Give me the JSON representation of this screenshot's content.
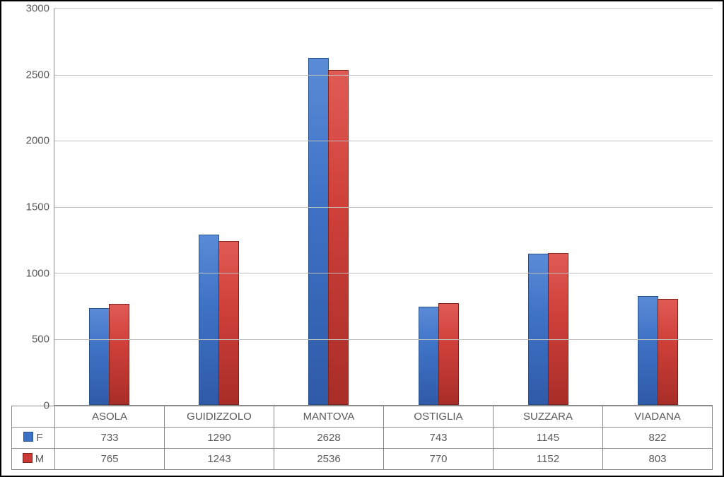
{
  "chart": {
    "type": "bar",
    "ylim": [
      0,
      3000
    ],
    "ytick_step": 500,
    "yticks": [
      0,
      500,
      1000,
      1500,
      2000,
      2500,
      3000
    ],
    "grid_color": "#bfbfbf",
    "axis_color": "#8a8a8a",
    "background_color": "#ffffff",
    "label_fontsize": 15,
    "label_color": "#5a5a5a",
    "categories": [
      "ASOLA",
      "GUIDIZZOLO",
      "MANTOVA",
      "OSTIGLIA",
      "SUZZARA",
      "VIADANA"
    ],
    "series": [
      {
        "key": "F",
        "label": "F",
        "color": "#3e71c4",
        "values": [
          733,
          1290,
          2628,
          743,
          1145,
          822
        ]
      },
      {
        "key": "M",
        "label": "M",
        "color": "#c93a34",
        "values": [
          765,
          1243,
          2536,
          770,
          1152,
          803
        ]
      }
    ],
    "bar_width_pct": 36
  }
}
